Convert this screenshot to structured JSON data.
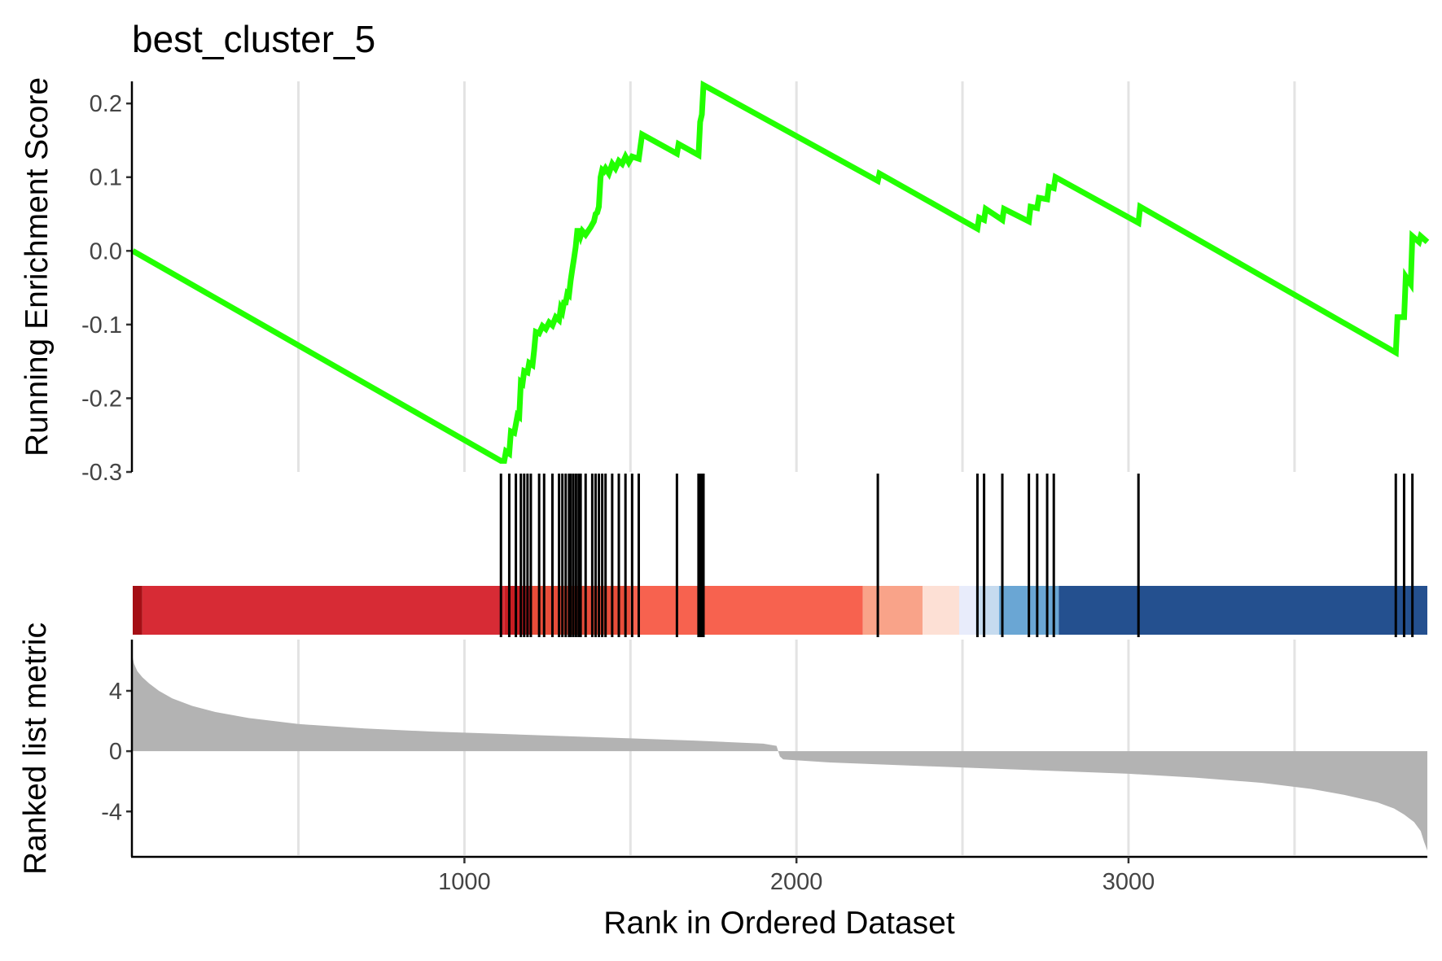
{
  "chart_data": {
    "type": "line",
    "title": "best_cluster_5",
    "xlabel": "Rank in Ordered Dataset",
    "xlim": [
      1,
      3900
    ],
    "xticks": [
      1000,
      2000,
      3000
    ],
    "grid": {
      "x_major": [
        500,
        1000,
        1500,
        2000,
        2500,
        3000,
        3500
      ],
      "y": false
    },
    "colors": {
      "line": "#22ff00",
      "hits": "#000000",
      "metric_fill": "#b3b3b3",
      "axis": "#000000",
      "grid": "#e3e3e3"
    },
    "es_panel": {
      "ylabel": "Running Enrichment Score",
      "ylim": [
        -0.3,
        0.23
      ],
      "yticks": [
        0.2,
        0.1,
        0.0,
        -0.1,
        -0.2,
        -0.3
      ],
      "ytick_labels": [
        "0.2",
        "0.1",
        "0.0",
        "-0.1",
        "-0.2",
        "-0.3"
      ],
      "series": [
        {
          "x": [
            1,
            1110,
            1120,
            1125,
            1135,
            1140,
            1150,
            1160,
            1165,
            1170,
            1175,
            1180,
            1190,
            1195,
            1205,
            1210,
            1215,
            1225,
            1235,
            1245,
            1255,
            1265,
            1275,
            1285,
            1290,
            1295,
            1300,
            1305,
            1310,
            1315,
            1320,
            1325,
            1330,
            1335,
            1340,
            1345,
            1350,
            1355,
            1365,
            1380,
            1390,
            1395,
            1400,
            1405,
            1410,
            1415,
            1420,
            1425,
            1435,
            1445,
            1455,
            1465,
            1475,
            1485,
            1495,
            1505,
            1525,
            1535,
            1640,
            1645,
            1705,
            1710,
            1715,
            1720,
            2245,
            2250,
            2545,
            2550,
            2565,
            2570,
            2620,
            2625,
            2700,
            2705,
            2725,
            2730,
            2755,
            2760,
            2775,
            2780,
            3030,
            3035,
            3805,
            3810,
            3830,
            3835,
            3850,
            3855,
            3875,
            3880,
            3900
          ],
          "y": [
            0.0,
            -0.285,
            -0.285,
            -0.272,
            -0.275,
            -0.245,
            -0.247,
            -0.223,
            -0.225,
            -0.178,
            -0.18,
            -0.163,
            -0.165,
            -0.152,
            -0.155,
            -0.135,
            -0.11,
            -0.112,
            -0.102,
            -0.106,
            -0.097,
            -0.101,
            -0.09,
            -0.094,
            -0.078,
            -0.082,
            -0.07,
            -0.07,
            -0.058,
            -0.06,
            -0.04,
            -0.025,
            -0.01,
            0.005,
            0.027,
            0.027,
            0.02,
            0.027,
            0.022,
            0.032,
            0.04,
            0.05,
            0.052,
            0.06,
            0.1,
            0.11,
            0.108,
            0.112,
            0.105,
            0.118,
            0.112,
            0.122,
            0.118,
            0.128,
            0.12,
            0.128,
            0.125,
            0.158,
            0.132,
            0.145,
            0.13,
            0.175,
            0.185,
            0.225,
            0.095,
            0.105,
            0.03,
            0.045,
            0.042,
            0.057,
            0.042,
            0.057,
            0.04,
            0.06,
            0.058,
            0.072,
            0.07,
            0.087,
            0.085,
            0.1,
            0.038,
            0.06,
            -0.138,
            -0.09,
            -0.09,
            -0.035,
            -0.045,
            0.02,
            0.012,
            0.02,
            0.012
          ]
        }
      ]
    },
    "hits_panel": {
      "positions": [
        1110,
        1135,
        1155,
        1170,
        1180,
        1190,
        1200,
        1225,
        1240,
        1265,
        1285,
        1295,
        1305,
        1315,
        1320,
        1328,
        1336,
        1344,
        1350,
        1365,
        1385,
        1395,
        1405,
        1415,
        1425,
        1445,
        1465,
        1485,
        1505,
        1525,
        1640,
        1705,
        1710,
        1715,
        1720,
        2245,
        2545,
        2565,
        2620,
        2700,
        2725,
        2755,
        2775,
        3030,
        3805,
        3830,
        3855
      ]
    },
    "color_bar": {
      "segments": [
        {
          "from": 1,
          "to": 30,
          "color": "#a50f15"
        },
        {
          "from": 30,
          "to": 1120,
          "color": "#d72b35"
        },
        {
          "from": 1120,
          "to": 1200,
          "color": "#c81d22"
        },
        {
          "from": 1200,
          "to": 1500,
          "color": "#e84d3a"
        },
        {
          "from": 1500,
          "to": 2200,
          "color": "#f7624f"
        },
        {
          "from": 2200,
          "to": 2380,
          "color": "#f9a389"
        },
        {
          "from": 2380,
          "to": 2490,
          "color": "#fde0d5"
        },
        {
          "from": 2490,
          "to": 2540,
          "color": "#e8ecfb"
        },
        {
          "from": 2540,
          "to": 2610,
          "color": "#c6dbef"
        },
        {
          "from": 2610,
          "to": 2790,
          "color": "#6aa6d4"
        },
        {
          "from": 2790,
          "to": 3900,
          "color": "#24508f"
        }
      ]
    },
    "metric_panel": {
      "ylabel": "Ranked list metric",
      "ylim": [
        -6.9,
        7.4
      ],
      "yticks": [
        4,
        0,
        -4
      ],
      "ytick_labels": [
        "4",
        "0",
        "-4"
      ],
      "profile": {
        "x": [
          1,
          5,
          15,
          30,
          50,
          80,
          120,
          180,
          250,
          350,
          500,
          700,
          900,
          1100,
          1300,
          1500,
          1700,
          1900,
          1940,
          1950,
          1960,
          2100,
          2400,
          2700,
          3000,
          3200,
          3400,
          3550,
          3650,
          3750,
          3800,
          3830,
          3860,
          3880,
          3890,
          3900
        ],
        "y": [
          6.2,
          5.8,
          5.3,
          4.9,
          4.5,
          4.0,
          3.5,
          3.0,
          2.6,
          2.2,
          1.8,
          1.5,
          1.3,
          1.15,
          1.0,
          0.85,
          0.7,
          0.5,
          0.35,
          -0.35,
          -0.55,
          -0.75,
          -1.0,
          -1.25,
          -1.5,
          -1.75,
          -2.1,
          -2.5,
          -2.9,
          -3.4,
          -3.8,
          -4.2,
          -4.7,
          -5.3,
          -6.0,
          -6.6
        ]
      }
    }
  }
}
